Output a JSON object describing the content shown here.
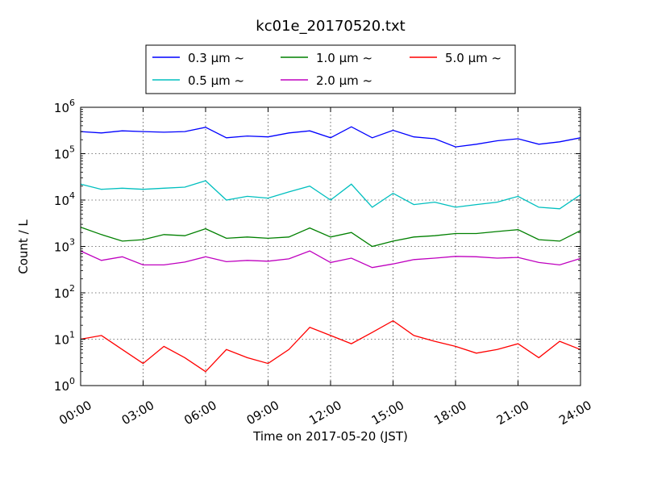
{
  "chart_data": {
    "type": "line",
    "title": "kc01e_20170520.txt",
    "xlabel": "Time on 2017-05-20 (JST)",
    "ylabel": "Count / L",
    "yscale": "log",
    "xlim": [
      "00:00",
      "24:00"
    ],
    "ylim": [
      1,
      1000000
    ],
    "grid": true,
    "legend_position": "top-center",
    "x_ticks": [
      "00:00",
      "03:00",
      "06:00",
      "09:00",
      "12:00",
      "15:00",
      "18:00",
      "21:00",
      "24:00"
    ],
    "y_ticks": [
      {
        "base": "10",
        "exp": "0"
      },
      {
        "base": "10",
        "exp": "1"
      },
      {
        "base": "10",
        "exp": "2"
      },
      {
        "base": "10",
        "exp": "3"
      },
      {
        "base": "10",
        "exp": "4"
      },
      {
        "base": "10",
        "exp": "5"
      },
      {
        "base": "10",
        "exp": "6"
      }
    ],
    "x": [
      "00:00",
      "01:00",
      "02:00",
      "03:00",
      "04:00",
      "05:00",
      "06:00",
      "07:00",
      "08:00",
      "09:00",
      "10:00",
      "11:00",
      "12:00",
      "13:00",
      "14:00",
      "15:00",
      "16:00",
      "17:00",
      "18:00",
      "19:00",
      "20:00",
      "21:00",
      "22:00",
      "23:00",
      "24:00"
    ],
    "series": [
      {
        "name": "0.3 μm ~",
        "color": "#0000ff",
        "values": [
          300000,
          280000,
          310000,
          300000,
          290000,
          300000,
          370000,
          220000,
          240000,
          230000,
          280000,
          310000,
          220000,
          380000,
          220000,
          320000,
          230000,
          210000,
          140000,
          160000,
          190000,
          210000,
          160000,
          180000,
          220000
        ]
      },
      {
        "name": "0.5 μm ~",
        "color": "#00bfbf",
        "values": [
          22000,
          17000,
          18000,
          17000,
          18000,
          19000,
          26000,
          10000,
          12000,
          11000,
          15000,
          20000,
          10000,
          22000,
          7000,
          14000,
          8000,
          9000,
          7000,
          8000,
          9000,
          12000,
          7000,
          6500,
          13000
        ]
      },
      {
        "name": "1.0 μm ~",
        "color": "#008000",
        "values": [
          2600,
          1800,
          1300,
          1400,
          1800,
          1700,
          2400,
          1500,
          1600,
          1500,
          1600,
          2500,
          1600,
          2000,
          1000,
          1300,
          1600,
          1700,
          1900,
          1900,
          2100,
          2300,
          1400,
          1300,
          2200
        ]
      },
      {
        "name": "2.0 μm ~",
        "color": "#bf00bf",
        "values": [
          800,
          500,
          600,
          400,
          400,
          460,
          600,
          470,
          500,
          480,
          540,
          800,
          450,
          560,
          350,
          420,
          520,
          560,
          610,
          600,
          560,
          580,
          450,
          400,
          550
        ]
      },
      {
        "name": "5.0 μm ~",
        "color": "#ff0000",
        "values": [
          10,
          12,
          6,
          3,
          7,
          4,
          2,
          6,
          4,
          3,
          6,
          18,
          12,
          8,
          14,
          25,
          12,
          9,
          7,
          5,
          6,
          8,
          4,
          9,
          6
        ]
      }
    ]
  }
}
